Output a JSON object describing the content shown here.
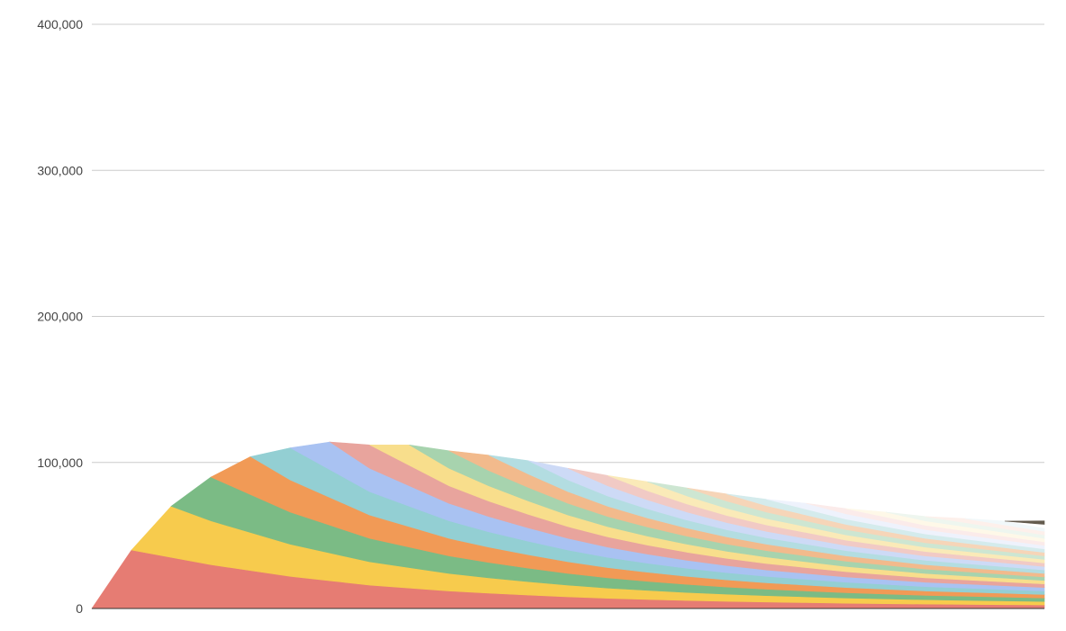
{
  "chart_data": {
    "type": "area",
    "stacked": true,
    "title": "",
    "xlabel": "",
    "ylabel": "",
    "ylim": [
      0,
      400000
    ],
    "y_ticks": [
      0,
      100000,
      200000,
      300000,
      400000
    ],
    "y_tick_labels": [
      "0",
      "100,000",
      "200,000",
      "300,000",
      "400,000"
    ],
    "grid": true,
    "legend": "none",
    "x_labels_shown": false,
    "total_points": 25,
    "series_count": 26,
    "series": [
      {
        "color": "#E67C73",
        "values": [
          0,
          40000,
          35000,
          30000,
          26000,
          22000,
          19000,
          16000,
          14000,
          12000,
          10500,
          9200,
          8000,
          7000,
          6200,
          5500,
          4900,
          4400,
          4000,
          3600,
          3300,
          3000,
          2800,
          2600,
          2400
        ]
      },
      {
        "color": "#F7CB4D",
        "values": [
          null,
          0,
          35000,
          30000,
          26000,
          22000,
          19000,
          16000,
          14000,
          12000,
          10500,
          9200,
          8000,
          7000,
          6200,
          5500,
          4900,
          4400,
          4000,
          3600,
          3300,
          3000,
          2800,
          2600,
          2400
        ]
      },
      {
        "color": "#7BBB85",
        "values": [
          null,
          null,
          0,
          30000,
          26000,
          22000,
          19000,
          16000,
          14000,
          12000,
          10500,
          9200,
          8000,
          7000,
          6200,
          5500,
          4900,
          4400,
          4000,
          3600,
          3300,
          3000,
          2800,
          2600,
          2400
        ]
      },
      {
        "color": "#F19A56",
        "values": [
          null,
          null,
          null,
          0,
          26000,
          22000,
          19000,
          16000,
          14000,
          12000,
          10500,
          9200,
          8000,
          7000,
          6200,
          5500,
          4900,
          4400,
          4000,
          3600,
          3300,
          3000,
          2800,
          2600,
          2400
        ]
      },
      {
        "color": "#93CFD3",
        "values": [
          null,
          null,
          null,
          null,
          0,
          22000,
          19000,
          16000,
          14000,
          12000,
          10500,
          9200,
          8000,
          7000,
          6200,
          5500,
          4900,
          4400,
          4000,
          3600,
          3300,
          3000,
          2800,
          2600,
          2400
        ]
      },
      {
        "color": "#A9C2F2",
        "values": [
          null,
          null,
          null,
          null,
          null,
          0,
          19000,
          16000,
          14000,
          12000,
          10500,
          9200,
          8000,
          7000,
          6200,
          5500,
          4900,
          4400,
          4000,
          3600,
          3300,
          3000,
          2800,
          2600,
          2400
        ]
      },
      {
        "color": "#E8A49D",
        "values": [
          null,
          null,
          null,
          null,
          null,
          null,
          0,
          16000,
          14000,
          12000,
          10500,
          9200,
          8000,
          7000,
          6200,
          5500,
          4900,
          4400,
          4000,
          3600,
          3300,
          3000,
          2800,
          2600,
          2400
        ]
      },
      {
        "color": "#F8DE8C",
        "values": [
          null,
          null,
          null,
          null,
          null,
          null,
          null,
          0,
          14000,
          12000,
          10500,
          9200,
          8000,
          7000,
          6200,
          5500,
          4900,
          4400,
          4000,
          3600,
          3300,
          3000,
          2800,
          2600,
          2400
        ]
      },
      {
        "color": "#A7D3AE",
        "values": [
          null,
          null,
          null,
          null,
          null,
          null,
          null,
          null,
          0,
          12000,
          10500,
          9200,
          8000,
          7000,
          6200,
          5500,
          4900,
          4400,
          4000,
          3600,
          3300,
          3000,
          2800,
          2600,
          2400
        ]
      },
      {
        "color": "#F2BA8C",
        "values": [
          null,
          null,
          null,
          null,
          null,
          null,
          null,
          null,
          null,
          0,
          10500,
          9200,
          8000,
          7000,
          6200,
          5500,
          4900,
          4400,
          4000,
          3600,
          3300,
          3000,
          2800,
          2600,
          2400
        ]
      },
      {
        "color": "#B3DDE1",
        "values": [
          null,
          null,
          null,
          null,
          null,
          null,
          null,
          null,
          null,
          null,
          0,
          9200,
          8000,
          7000,
          6200,
          5500,
          4900,
          4400,
          4000,
          3600,
          3300,
          3000,
          2800,
          2600,
          2400
        ]
      },
      {
        "color": "#CDDAF6",
        "values": [
          null,
          null,
          null,
          null,
          null,
          null,
          null,
          null,
          null,
          null,
          null,
          0,
          8000,
          7000,
          6200,
          5500,
          4900,
          4400,
          4000,
          3600,
          3300,
          3000,
          2800,
          2600,
          2400
        ]
      },
      {
        "color": "#F1CAC5",
        "values": [
          null,
          null,
          null,
          null,
          null,
          null,
          null,
          null,
          null,
          null,
          null,
          null,
          0,
          7000,
          6200,
          5500,
          4900,
          4400,
          4000,
          3600,
          3300,
          3000,
          2800,
          2600,
          2400
        ]
      },
      {
        "color": "#FAEAB8",
        "values": [
          null,
          null,
          null,
          null,
          null,
          null,
          null,
          null,
          null,
          null,
          null,
          null,
          null,
          0,
          6200,
          5500,
          4900,
          4400,
          4000,
          3600,
          3300,
          3000,
          2800,
          2600,
          2400
        ]
      },
      {
        "color": "#CDE6D2",
        "values": [
          null,
          null,
          null,
          null,
          null,
          null,
          null,
          null,
          null,
          null,
          null,
          null,
          null,
          null,
          0,
          5500,
          4900,
          4400,
          4000,
          3600,
          3300,
          3000,
          2800,
          2600,
          2400
        ]
      },
      {
        "color": "#F6D5B8",
        "values": [
          null,
          null,
          null,
          null,
          null,
          null,
          null,
          null,
          null,
          null,
          null,
          null,
          null,
          null,
          null,
          0,
          4900,
          4400,
          4000,
          3600,
          3300,
          3000,
          2800,
          2600,
          2400
        ]
      },
      {
        "color": "#D4EBEC",
        "values": [
          null,
          null,
          null,
          null,
          null,
          null,
          null,
          null,
          null,
          null,
          null,
          null,
          null,
          null,
          null,
          null,
          0,
          4400,
          4000,
          3600,
          3300,
          3000,
          2800,
          2600,
          2400
        ]
      },
      {
        "color": "#EEF2FC",
        "values": [
          null,
          null,
          null,
          null,
          null,
          null,
          null,
          null,
          null,
          null,
          null,
          null,
          null,
          null,
          null,
          null,
          null,
          0,
          4000,
          3600,
          3300,
          3000,
          2800,
          2600,
          2400
        ]
      },
      {
        "color": "#FBEBEA",
        "values": [
          null,
          null,
          null,
          null,
          null,
          null,
          null,
          null,
          null,
          null,
          null,
          null,
          null,
          null,
          null,
          null,
          null,
          null,
          0,
          3600,
          3300,
          3000,
          2800,
          2600,
          2400
        ]
      },
      {
        "color": "#FEF8E8",
        "values": [
          null,
          null,
          null,
          null,
          null,
          null,
          null,
          null,
          null,
          null,
          null,
          null,
          null,
          null,
          null,
          null,
          null,
          null,
          null,
          0,
          3300,
          3000,
          2800,
          2600,
          2400
        ]
      },
      {
        "color": "#EEF6EF",
        "values": [
          null,
          null,
          null,
          null,
          null,
          null,
          null,
          null,
          null,
          null,
          null,
          null,
          null,
          null,
          null,
          null,
          null,
          null,
          null,
          null,
          0,
          3000,
          2800,
          2600,
          2400
        ]
      },
      {
        "color": "#FDF0EB",
        "values": [
          null,
          null,
          null,
          null,
          null,
          null,
          null,
          null,
          null,
          null,
          null,
          null,
          null,
          null,
          null,
          null,
          null,
          null,
          null,
          null,
          null,
          0,
          2800,
          2600,
          2400
        ]
      },
      {
        "color": "#F1F8FA",
        "values": [
          null,
          null,
          null,
          null,
          null,
          null,
          null,
          null,
          null,
          null,
          null,
          null,
          null,
          null,
          null,
          null,
          null,
          null,
          null,
          null,
          null,
          null,
          0,
          2600,
          2400
        ]
      },
      {
        "color": "#FFFFFF",
        "values": [
          null,
          null,
          null,
          null,
          null,
          null,
          null,
          null,
          null,
          null,
          null,
          null,
          null,
          null,
          null,
          null,
          null,
          null,
          null,
          null,
          null,
          null,
          null,
          0,
          2400
        ]
      },
      {
        "color": "#635B4E",
        "values": [
          null,
          null,
          null,
          null,
          null,
          null,
          null,
          null,
          null,
          null,
          null,
          null,
          null,
          null,
          null,
          null,
          null,
          null,
          null,
          null,
          null,
          null,
          null,
          0,
          2400
        ]
      },
      {
        "color": "#4F6367",
        "values": [
          null,
          null,
          null,
          null,
          null,
          null,
          null,
          null,
          null,
          null,
          null,
          null,
          null,
          null,
          null,
          null,
          null,
          null,
          null,
          null,
          null,
          null,
          null,
          null,
          0
        ]
      }
    ]
  }
}
